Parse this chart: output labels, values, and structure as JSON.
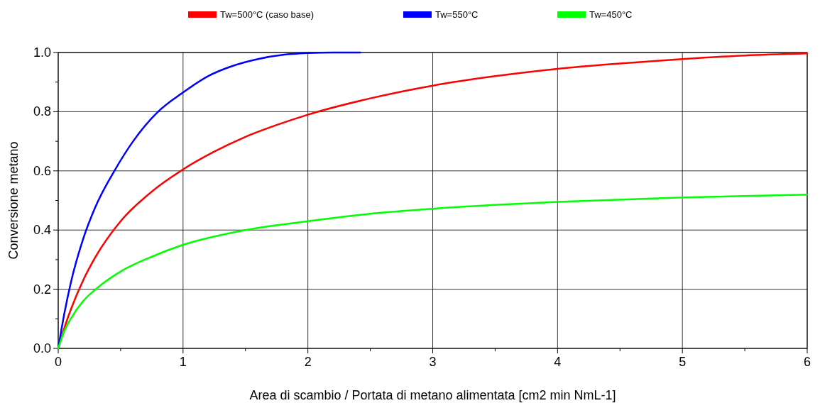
{
  "chart_data": {
    "type": "line",
    "xlabel": "Area di scambio / Portata di metano alimentata [cm2 min NmL-1]",
    "ylabel": "Conversione metano",
    "xlim": [
      0,
      6
    ],
    "ylim": [
      0,
      1
    ],
    "xticks": [
      0,
      {
        "value": 0.5,
        "label": null
      },
      1,
      {
        "value": 1.5,
        "label": null
      },
      2,
      {
        "value": 2.5,
        "label": null
      },
      3,
      {
        "value": 3.5,
        "label": null
      },
      4,
      {
        "value": 4.5,
        "label": null
      },
      5,
      {
        "value": 5.5,
        "label": null
      },
      6
    ],
    "yticks": [
      {
        "value": 0,
        "label": "0.0"
      },
      {
        "value": 0.1,
        "label": null
      },
      {
        "value": 0.2,
        "label": "0.2"
      },
      {
        "value": 0.3,
        "label": null
      },
      {
        "value": 0.4,
        "label": "0.4"
      },
      {
        "value": 0.5,
        "label": null
      },
      {
        "value": 0.6,
        "label": "0.6"
      },
      {
        "value": 0.7,
        "label": null
      },
      {
        "value": 0.8,
        "label": "0.8"
      },
      {
        "value": 0.9,
        "label": null
      },
      {
        "value": 1,
        "label": "1.0"
      }
    ],
    "grid": true,
    "legend": "top",
    "marker": "none",
    "line_style": "solid",
    "series": [
      {
        "name": "Tw=500°C (caso base)",
        "color": "#ff0000",
        "x": [
          0,
          0.05,
          0.1,
          0.2,
          0.3,
          0.5,
          0.75,
          1,
          1.25,
          1.5,
          1.75,
          2,
          2.5,
          3,
          3.5,
          4,
          4.5,
          5,
          5.5,
          6
        ],
        "values": [
          0,
          0.07,
          0.13,
          0.23,
          0.31,
          0.43,
          0.53,
          0.605,
          0.665,
          0.715,
          0.755,
          0.79,
          0.845,
          0.888,
          0.92,
          0.945,
          0.963,
          0.978,
          0.99,
          0.997
        ]
      },
      {
        "name": "Tw=550°C",
        "color": "#0000ff",
        "x": [
          0,
          0.05,
          0.1,
          0.2,
          0.3,
          0.45,
          0.6,
          0.8,
          1,
          1.2,
          1.4,
          1.6,
          1.8,
          2,
          2.2,
          2.42
        ],
        "values": [
          0,
          0.12,
          0.22,
          0.37,
          0.48,
          0.6,
          0.7,
          0.8,
          0.865,
          0.92,
          0.955,
          0.978,
          0.992,
          0.998,
          1,
          1
        ]
      },
      {
        "name": "Tw=450°C",
        "color": "#00ff00",
        "x": [
          0,
          0.05,
          0.1,
          0.2,
          0.3,
          0.5,
          0.75,
          1,
          1.5,
          2,
          2.5,
          3,
          4,
          5,
          6
        ],
        "values": [
          0,
          0.06,
          0.1,
          0.16,
          0.2,
          0.26,
          0.31,
          0.35,
          0.4,
          0.43,
          0.455,
          0.472,
          0.495,
          0.51,
          0.52
        ]
      }
    ]
  }
}
